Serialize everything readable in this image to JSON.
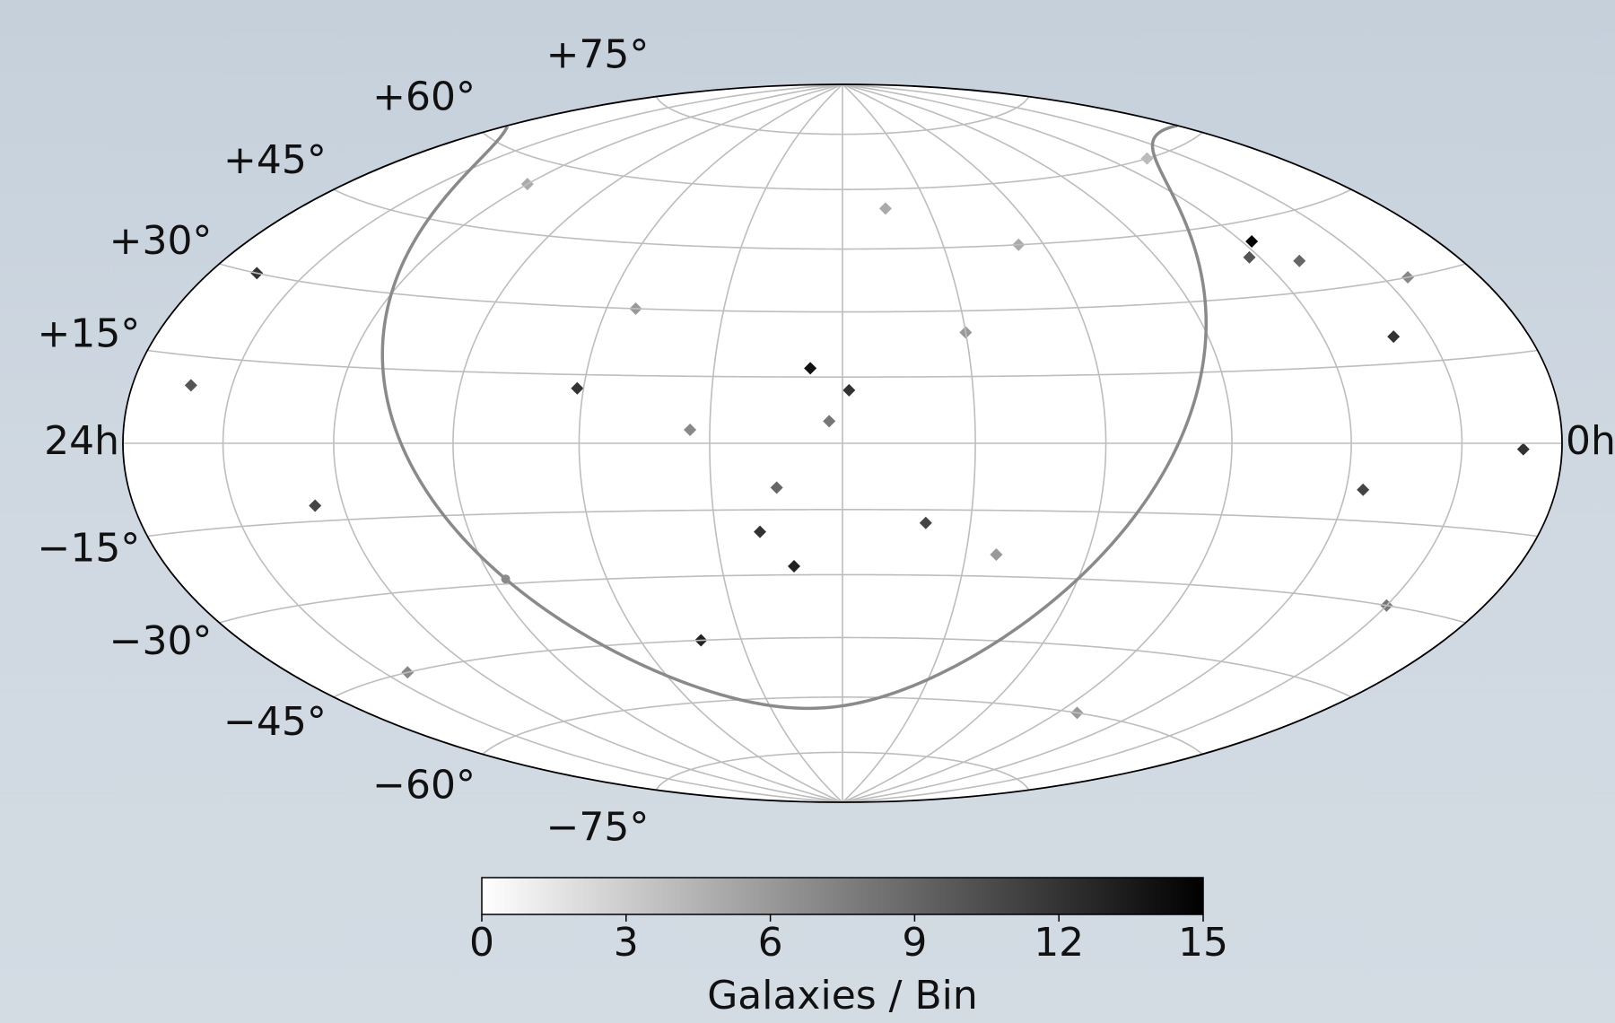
{
  "chart_data": {
    "type": "skymap",
    "projection": "hammer",
    "xticks": [
      {
        "value": 24,
        "label": "24h"
      },
      {
        "value": 0,
        "label": "0h"
      }
    ],
    "meridians": [
      2,
      4,
      6,
      8,
      10,
      12,
      14,
      16,
      18,
      20,
      22
    ],
    "parallels": [
      -75,
      -60,
      -45,
      -30,
      -15,
      0,
      15,
      30,
      45,
      60,
      75
    ],
    "yticks": [
      {
        "value": 75,
        "label": "+75°"
      },
      {
        "value": 60,
        "label": "+60°"
      },
      {
        "value": 45,
        "label": "+45°"
      },
      {
        "value": 30,
        "label": "+30°"
      },
      {
        "value": 15,
        "label": "+15°"
      },
      {
        "value": -15,
        "label": "−15°"
      },
      {
        "value": -30,
        "label": "−30°"
      },
      {
        "value": -45,
        "label": "−45°"
      },
      {
        "value": -60,
        "label": "−60°"
      },
      {
        "value": -75,
        "label": "−75°"
      }
    ],
    "grid_color": "#bdbdbd",
    "galactic_plane_color": "#8a8a8a",
    "hotspots": [
      {
        "ra": 3.8,
        "dec": 41,
        "count": 15
      },
      {
        "ra": 12.5,
        "dec": 17,
        "count": 14
      },
      {
        "ra": 11.9,
        "dec": 12,
        "count": 12
      },
      {
        "ra": 16.1,
        "dec": 12,
        "count": 12
      },
      {
        "ra": 13.3,
        "dec": -20,
        "count": 12
      },
      {
        "ra": 12.8,
        "dec": -28,
        "count": 13
      },
      {
        "ra": 10.7,
        "dec": -18,
        "count": 11
      },
      {
        "ra": 14.8,
        "dec": -45,
        "count": 13
      },
      {
        "ra": 2.7,
        "dec": 20,
        "count": 12
      },
      {
        "ra": 0.8,
        "dec": -1,
        "count": 12
      },
      {
        "ra": 3.7,
        "dec": -9,
        "count": 11
      },
      {
        "ra": 23,
        "dec": 30,
        "count": 12
      },
      {
        "ra": 20.5,
        "dec": -12,
        "count": 11
      },
      {
        "ra": 22.8,
        "dec": 10,
        "count": 10
      },
      {
        "ra": 4.2,
        "dec": 38,
        "count": 10
      },
      {
        "ra": 3.3,
        "dec": 36,
        "count": 9
      },
      {
        "ra": 12.2,
        "dec": 5,
        "count": 8
      },
      {
        "ra": 13.0,
        "dec": -10,
        "count": 9
      },
      {
        "ra": 14.3,
        "dec": 3,
        "count": 7
      },
      {
        "ra": 10.0,
        "dec": 25,
        "count": 6
      },
      {
        "ra": 8.5,
        "dec": 45,
        "count": 5
      },
      {
        "ra": 15.5,
        "dec": 30,
        "count": 6
      },
      {
        "ra": 1.5,
        "dec": 30,
        "count": 7
      },
      {
        "ra": 2.0,
        "dec": -30,
        "count": 8
      },
      {
        "ra": 21.5,
        "dec": -45,
        "count": 7
      },
      {
        "ra": 5.5,
        "dec": -60,
        "count": 6
      },
      {
        "ra": 20.0,
        "dec": 55,
        "count": 5
      },
      {
        "ra": 9.5,
        "dec": -25,
        "count": 6
      },
      {
        "ra": 11.0,
        "dec": 55,
        "count": 5
      },
      {
        "ra": 3.0,
        "dec": 60,
        "count": 4
      }
    ],
    "colorbar": {
      "lim": [
        0,
        15
      ],
      "ticks": [
        0,
        3,
        6,
        9,
        12,
        15
      ],
      "label": "Galaxies / Bin",
      "colors": [
        "#ffffff",
        "#000000"
      ]
    }
  }
}
